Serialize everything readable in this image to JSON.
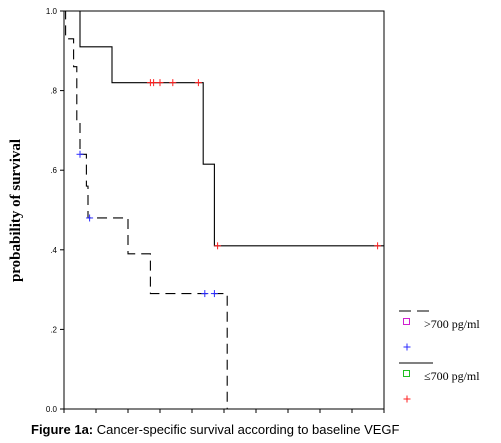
{
  "chart_data": {
    "type": "line",
    "subtype": "kaplan-meier-step",
    "ylabel": "probability of survival",
    "ylim": [
      0,
      1
    ],
    "yticks": [
      "0.0",
      ".2",
      ".4",
      ".6",
      ".8",
      "1.0"
    ],
    "ytick_values": [
      0,
      0.2,
      0.4,
      0.6,
      0.8,
      1.0
    ],
    "xlim": [
      0,
      100
    ],
    "xtick_values": [
      0,
      10,
      20,
      30,
      40,
      50,
      60,
      70,
      80,
      90,
      100
    ],
    "series": [
      {
        "name": ">700 pg/ml",
        "style": "dashed",
        "color": "#000000",
        "censor_color": "#2b2bff",
        "steps": [
          [
            0,
            1.0
          ],
          [
            0.5,
            0.93
          ],
          [
            3,
            0.86
          ],
          [
            4,
            0.72
          ],
          [
            5,
            0.64
          ],
          [
            7,
            0.56
          ],
          [
            7.5,
            0.48
          ],
          [
            15,
            0.48
          ],
          [
            20,
            0.39
          ],
          [
            27,
            0.29
          ],
          [
            50,
            0.29
          ],
          [
            51,
            0.0
          ]
        ],
        "censor": [
          [
            5,
            0.64
          ],
          [
            8,
            0.48
          ],
          [
            44,
            0.29
          ],
          [
            47,
            0.29
          ]
        ]
      },
      {
        "name": "≤700 pg/ml",
        "style": "solid",
        "color": "#000000",
        "censor_color": "#ff2020",
        "steps": [
          [
            0,
            1.0
          ],
          [
            5,
            0.91
          ],
          [
            15,
            0.82
          ],
          [
            43,
            0.82
          ],
          [
            43.5,
            0.615
          ],
          [
            47,
            0.41
          ],
          [
            100,
            0.41
          ]
        ],
        "censor": [
          [
            27,
            0.82
          ],
          [
            28,
            0.82
          ],
          [
            30,
            0.82
          ],
          [
            34,
            0.82
          ],
          [
            42,
            0.82
          ],
          [
            48,
            0.41
          ],
          [
            98,
            0.41
          ]
        ]
      }
    ],
    "legend": {
      "position": "right",
      "entries": [
        {
          "label": ">700 pg/ml",
          "line": "dashed",
          "marker": "square",
          "marker_color": "#d020d0",
          "censor_color": "#2b2bff"
        },
        {
          "label": "≤700 pg/ml",
          "line": "solid",
          "marker": "square",
          "marker_color": "#20c020",
          "censor_color": "#ff2020"
        }
      ]
    },
    "caption_label": "Figure 1a:",
    "caption_text": " Cancer-specific survival according to baseline VEGF"
  }
}
